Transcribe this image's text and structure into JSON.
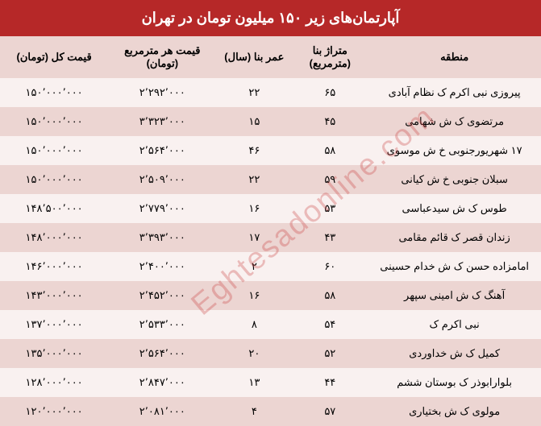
{
  "title": "آپارتمان‌های زیر ۱۵۰ میلیون تومان در تهران",
  "columns": {
    "region": "منطقه",
    "area": "متراژ بنا (مترمربع)",
    "age": "عمر بنا (سال)",
    "price_per_m": "قیمت هر مترمربع (تومان)",
    "total_price": "قیمت کل (تومان)"
  },
  "rows": [
    {
      "region": "پیروزی نبی اکرم ک نظام آبادی",
      "area": "۶۵",
      "age": "۲۲",
      "price_per_m": "۲٬۲۹۲٬۰۰۰",
      "total_price": "۱۵۰٬۰۰۰٬۰۰۰"
    },
    {
      "region": "مرتضوی ک ش شهامی",
      "area": "۴۵",
      "age": "۱۵",
      "price_per_m": "۳٬۳۲۳٬۰۰۰",
      "total_price": "۱۵۰٬۰۰۰٬۰۰۰"
    },
    {
      "region": "۱۷ شهریورجنوبی خ ش موسوی",
      "area": "۵۸",
      "age": "۴۶",
      "price_per_m": "۲٬۵۶۴٬۰۰۰",
      "total_price": "۱۵۰٬۰۰۰٬۰۰۰"
    },
    {
      "region": "سبلان جنوبی خ ش کیانی",
      "area": "۵۹",
      "age": "۲۲",
      "price_per_m": "۲٬۵۰۹٬۰۰۰",
      "total_price": "۱۵۰٬۰۰۰٬۰۰۰"
    },
    {
      "region": "طوس ک ش سیدعباسی",
      "area": "۵۳",
      "age": "۱۶",
      "price_per_m": "۲٬۷۷۹٬۰۰۰",
      "total_price": "۱۴۸٬۵۰۰٬۰۰۰"
    },
    {
      "region": "زندان قصر ک قائم مقامی",
      "area": "۴۳",
      "age": "۱۷",
      "price_per_m": "۳٬۳۹۳٬۰۰۰",
      "total_price": "۱۴۸٬۰۰۰٬۰۰۰"
    },
    {
      "region": "امامزاده حسن ک ش خدام حسینی",
      "area": "۶۰",
      "age": "۲",
      "price_per_m": "۲٬۴۰۰٬۰۰۰",
      "total_price": "۱۴۶٬۰۰۰٬۰۰۰"
    },
    {
      "region": "آهنگ ک ش امینی سپهر",
      "area": "۵۸",
      "age": "۱۶",
      "price_per_m": "۲٬۴۵۲٬۰۰۰",
      "total_price": "۱۴۳٬۰۰۰٬۰۰۰"
    },
    {
      "region": "نبی اکرم ک",
      "area": "۵۴",
      "age": "۸",
      "price_per_m": "۲٬۵۳۳٬۰۰۰",
      "total_price": "۱۳۷٬۰۰۰٬۰۰۰"
    },
    {
      "region": "کمیل ک ش خداوردی",
      "area": "۵۲",
      "age": "۲۰",
      "price_per_m": "۲٬۵۶۴٬۰۰۰",
      "total_price": "۱۳۵٬۰۰۰٬۰۰۰"
    },
    {
      "region": "بلوارابوذر ک بوستان ششم",
      "area": "۴۴",
      "age": "۱۳",
      "price_per_m": "۲٬۸۴۷٬۰۰۰",
      "total_price": "۱۲۸٬۰۰۰٬۰۰۰"
    },
    {
      "region": "مولوی ک ش بختیاری",
      "area": "۵۷",
      "age": "۴",
      "price_per_m": "۲٬۰۸۱٬۰۰۰",
      "total_price": "۱۲۰٬۰۰۰٬۰۰۰"
    }
  ],
  "watermark": "Eghtesadonline.com",
  "styling": {
    "header_bg": "#b62828",
    "header_text_color": "#ffffff",
    "row_odd_bg": "#f9f1f0",
    "row_even_bg": "#ecd5d2",
    "thead_bg": "#ecd5d2",
    "text_color": "#000000",
    "title_fontsize": 18,
    "header_fontsize": 13,
    "cell_fontsize": 13,
    "watermark_color": "rgba(200, 60, 60, 0.3)",
    "watermark_fontsize": 38,
    "col_widths": {
      "region": "32%",
      "area": "14%",
      "age": "14%",
      "price_per_m": "20%",
      "total_price": "20%"
    }
  }
}
